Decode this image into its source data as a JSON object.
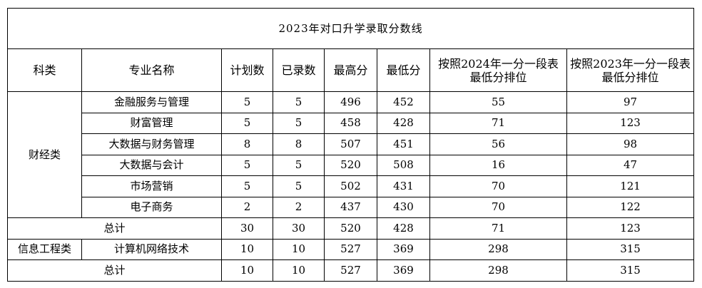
{
  "title": "2023年对口升学录取分数线",
  "headers": {
    "category": "科类",
    "major": "专业名称",
    "plan": "计划数",
    "admitted": "已录数",
    "max_score": "最高分",
    "min_score": "最低分",
    "rank_2024_line1": "按照2024年一分一段表",
    "rank_2024_line2": "最低分排位",
    "rank_2023_line1": "按照2023年一分一段表",
    "rank_2023_line2": "最低分排位"
  },
  "groups": [
    {
      "category": "财经类",
      "rows": [
        {
          "major": "金融服务与管理",
          "plan": "5",
          "admitted": "5",
          "max": "496",
          "min": "452",
          "rank2024": "55",
          "rank2023": "97"
        },
        {
          "major": "财富管理",
          "plan": "5",
          "admitted": "5",
          "max": "458",
          "min": "428",
          "rank2024": "71",
          "rank2023": "123"
        },
        {
          "major": "大数据与财务管理",
          "plan": "8",
          "admitted": "8",
          "max": "507",
          "min": "451",
          "rank2024": "56",
          "rank2023": "98"
        },
        {
          "major": "大数据与会计",
          "plan": "5",
          "admitted": "5",
          "max": "520",
          "min": "508",
          "rank2024": "16",
          "rank2023": "47"
        },
        {
          "major": "市场营销",
          "plan": "5",
          "admitted": "5",
          "max": "502",
          "min": "431",
          "rank2024": "70",
          "rank2023": "121"
        },
        {
          "major": "电子商务",
          "plan": "2",
          "admitted": "2",
          "max": "437",
          "min": "430",
          "rank2024": "70",
          "rank2023": "122"
        }
      ],
      "total": {
        "label": "总计",
        "plan": "30",
        "admitted": "30",
        "max": "520",
        "min": "428",
        "rank2024": "71",
        "rank2023": "123"
      }
    },
    {
      "category": "信息工程类",
      "rows": [
        {
          "major": "计算机网络技术",
          "plan": "10",
          "admitted": "10",
          "max": "527",
          "min": "369",
          "rank2024": "298",
          "rank2023": "315"
        }
      ],
      "total": {
        "label": "总计",
        "plan": "10",
        "admitted": "10",
        "max": "527",
        "min": "369",
        "rank2024": "298",
        "rank2023": "315"
      }
    }
  ]
}
